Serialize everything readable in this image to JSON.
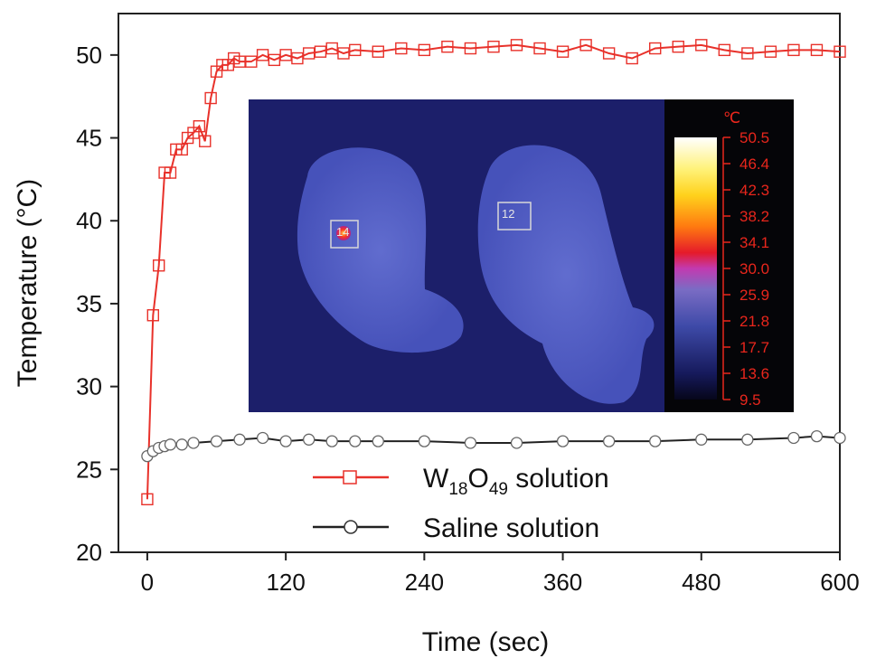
{
  "chart_data": {
    "type": "line",
    "xlabel": "Time (sec)",
    "ylabel": "Temperature (°C)",
    "xlim": [
      -25,
      600
    ],
    "ylim": [
      20,
      52.5
    ],
    "xticks": [
      0,
      120,
      240,
      360,
      480,
      600
    ],
    "yticks": [
      20,
      25,
      30,
      35,
      40,
      45,
      50
    ],
    "grid": false,
    "legend_position": "bottom-center",
    "series": [
      {
        "name": "W18O49 solution",
        "legend": {
          "main": "W",
          "sub1": "18",
          "mid": "O",
          "sub2": "49",
          "tail": " solution"
        },
        "color": "#e8312a",
        "marker": "open-square",
        "x": [
          0,
          5,
          10,
          15,
          20,
          25,
          30,
          35,
          40,
          45,
          50,
          55,
          60,
          65,
          70,
          75,
          80,
          90,
          100,
          110,
          120,
          130,
          140,
          150,
          160,
          170,
          180,
          200,
          220,
          240,
          260,
          280,
          300,
          320,
          340,
          360,
          380,
          400,
          420,
          440,
          460,
          480,
          500,
          520,
          540,
          560,
          580,
          600
        ],
        "y": [
          23.2,
          34.3,
          37.3,
          42.9,
          42.9,
          44.3,
          44.3,
          45.0,
          45.3,
          45.7,
          44.8,
          47.4,
          49.0,
          49.4,
          49.4,
          49.8,
          49.6,
          49.6,
          50.0,
          49.7,
          50.0,
          49.8,
          50.1,
          50.2,
          50.4,
          50.1,
          50.3,
          50.2,
          50.4,
          50.3,
          50.5,
          50.4,
          50.5,
          50.6,
          50.4,
          50.2,
          50.6,
          50.1,
          49.8,
          50.4,
          50.5,
          50.6,
          50.3,
          50.1,
          50.2,
          50.3,
          50.3,
          50.2
        ]
      },
      {
        "name": "Saline solution",
        "legend": {
          "main": "Saline solution"
        },
        "color": "#222222",
        "marker": "open-circle",
        "x": [
          0,
          5,
          10,
          15,
          20,
          30,
          40,
          60,
          80,
          100,
          120,
          140,
          160,
          180,
          200,
          240,
          280,
          320,
          360,
          400,
          440,
          480,
          520,
          560,
          580,
          600
        ],
        "y": [
          25.8,
          26.1,
          26.3,
          26.4,
          26.5,
          26.5,
          26.6,
          26.7,
          26.8,
          26.9,
          26.7,
          26.8,
          26.7,
          26.7,
          26.7,
          26.7,
          26.6,
          26.6,
          26.7,
          26.7,
          26.7,
          26.8,
          26.8,
          26.9,
          27.0,
          26.9
        ]
      }
    ],
    "inset": {
      "description_kind": "thermal-image",
      "roi_labels": [
        "14",
        "12"
      ],
      "colorbar_unit": "℃",
      "colorbar_values": [
        "50.5",
        "46.4",
        "42.3",
        "38.2",
        "34.1",
        "30.0",
        "25.9",
        "21.8",
        "17.7",
        "13.6",
        "9.5"
      ]
    }
  }
}
